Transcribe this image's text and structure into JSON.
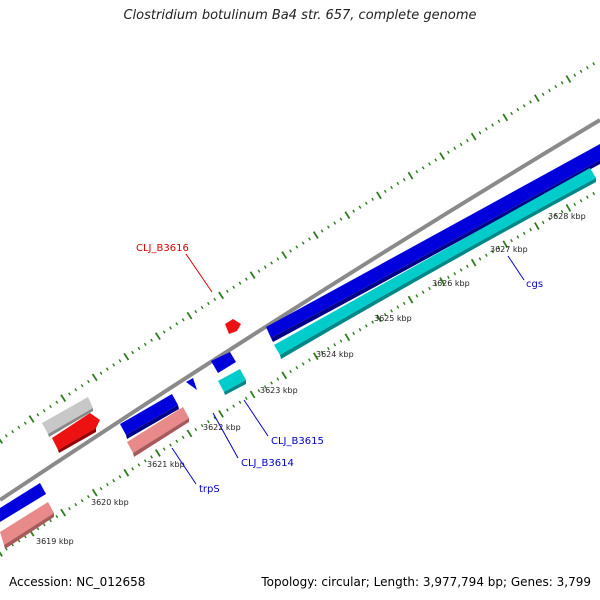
{
  "title": "Clostridium botulinum Ba4 str. 657, complete genome",
  "footer": {
    "accession": "Accession: NC_012658",
    "summary": "Topology: circular; Length: 3,977,794 bp; Genes: 3,799"
  },
  "ruler_labels": [
    "3619 kbp",
    "3620 kbp",
    "3621 kbp",
    "3622 kbp",
    "3623 kbp",
    "3624 kbp",
    "3625 kbp",
    "3626 kbp",
    "3627 kbp",
    "3628 kbp"
  ],
  "gene_labels": [
    {
      "text": "CLJ_B3616",
      "color": "#dd0000"
    },
    {
      "text": "CLJ_B3615",
      "color": "#0000cc"
    },
    {
      "text": "CLJ_B3614",
      "color": "#0000cc"
    },
    {
      "text": "trpS",
      "color": "#0000cc"
    },
    {
      "text": "cgs",
      "color": "#0000cc"
    }
  ],
  "colors": {
    "backbone": "#8a8a8a",
    "tick": "#2e7d1e",
    "forward_cds": "#0000dd",
    "reverse_rna": "#00cccc",
    "red_feature": "#ee1111",
    "pink_feature": "#e88a8a",
    "grey_feature": "#c8c8c8"
  }
}
